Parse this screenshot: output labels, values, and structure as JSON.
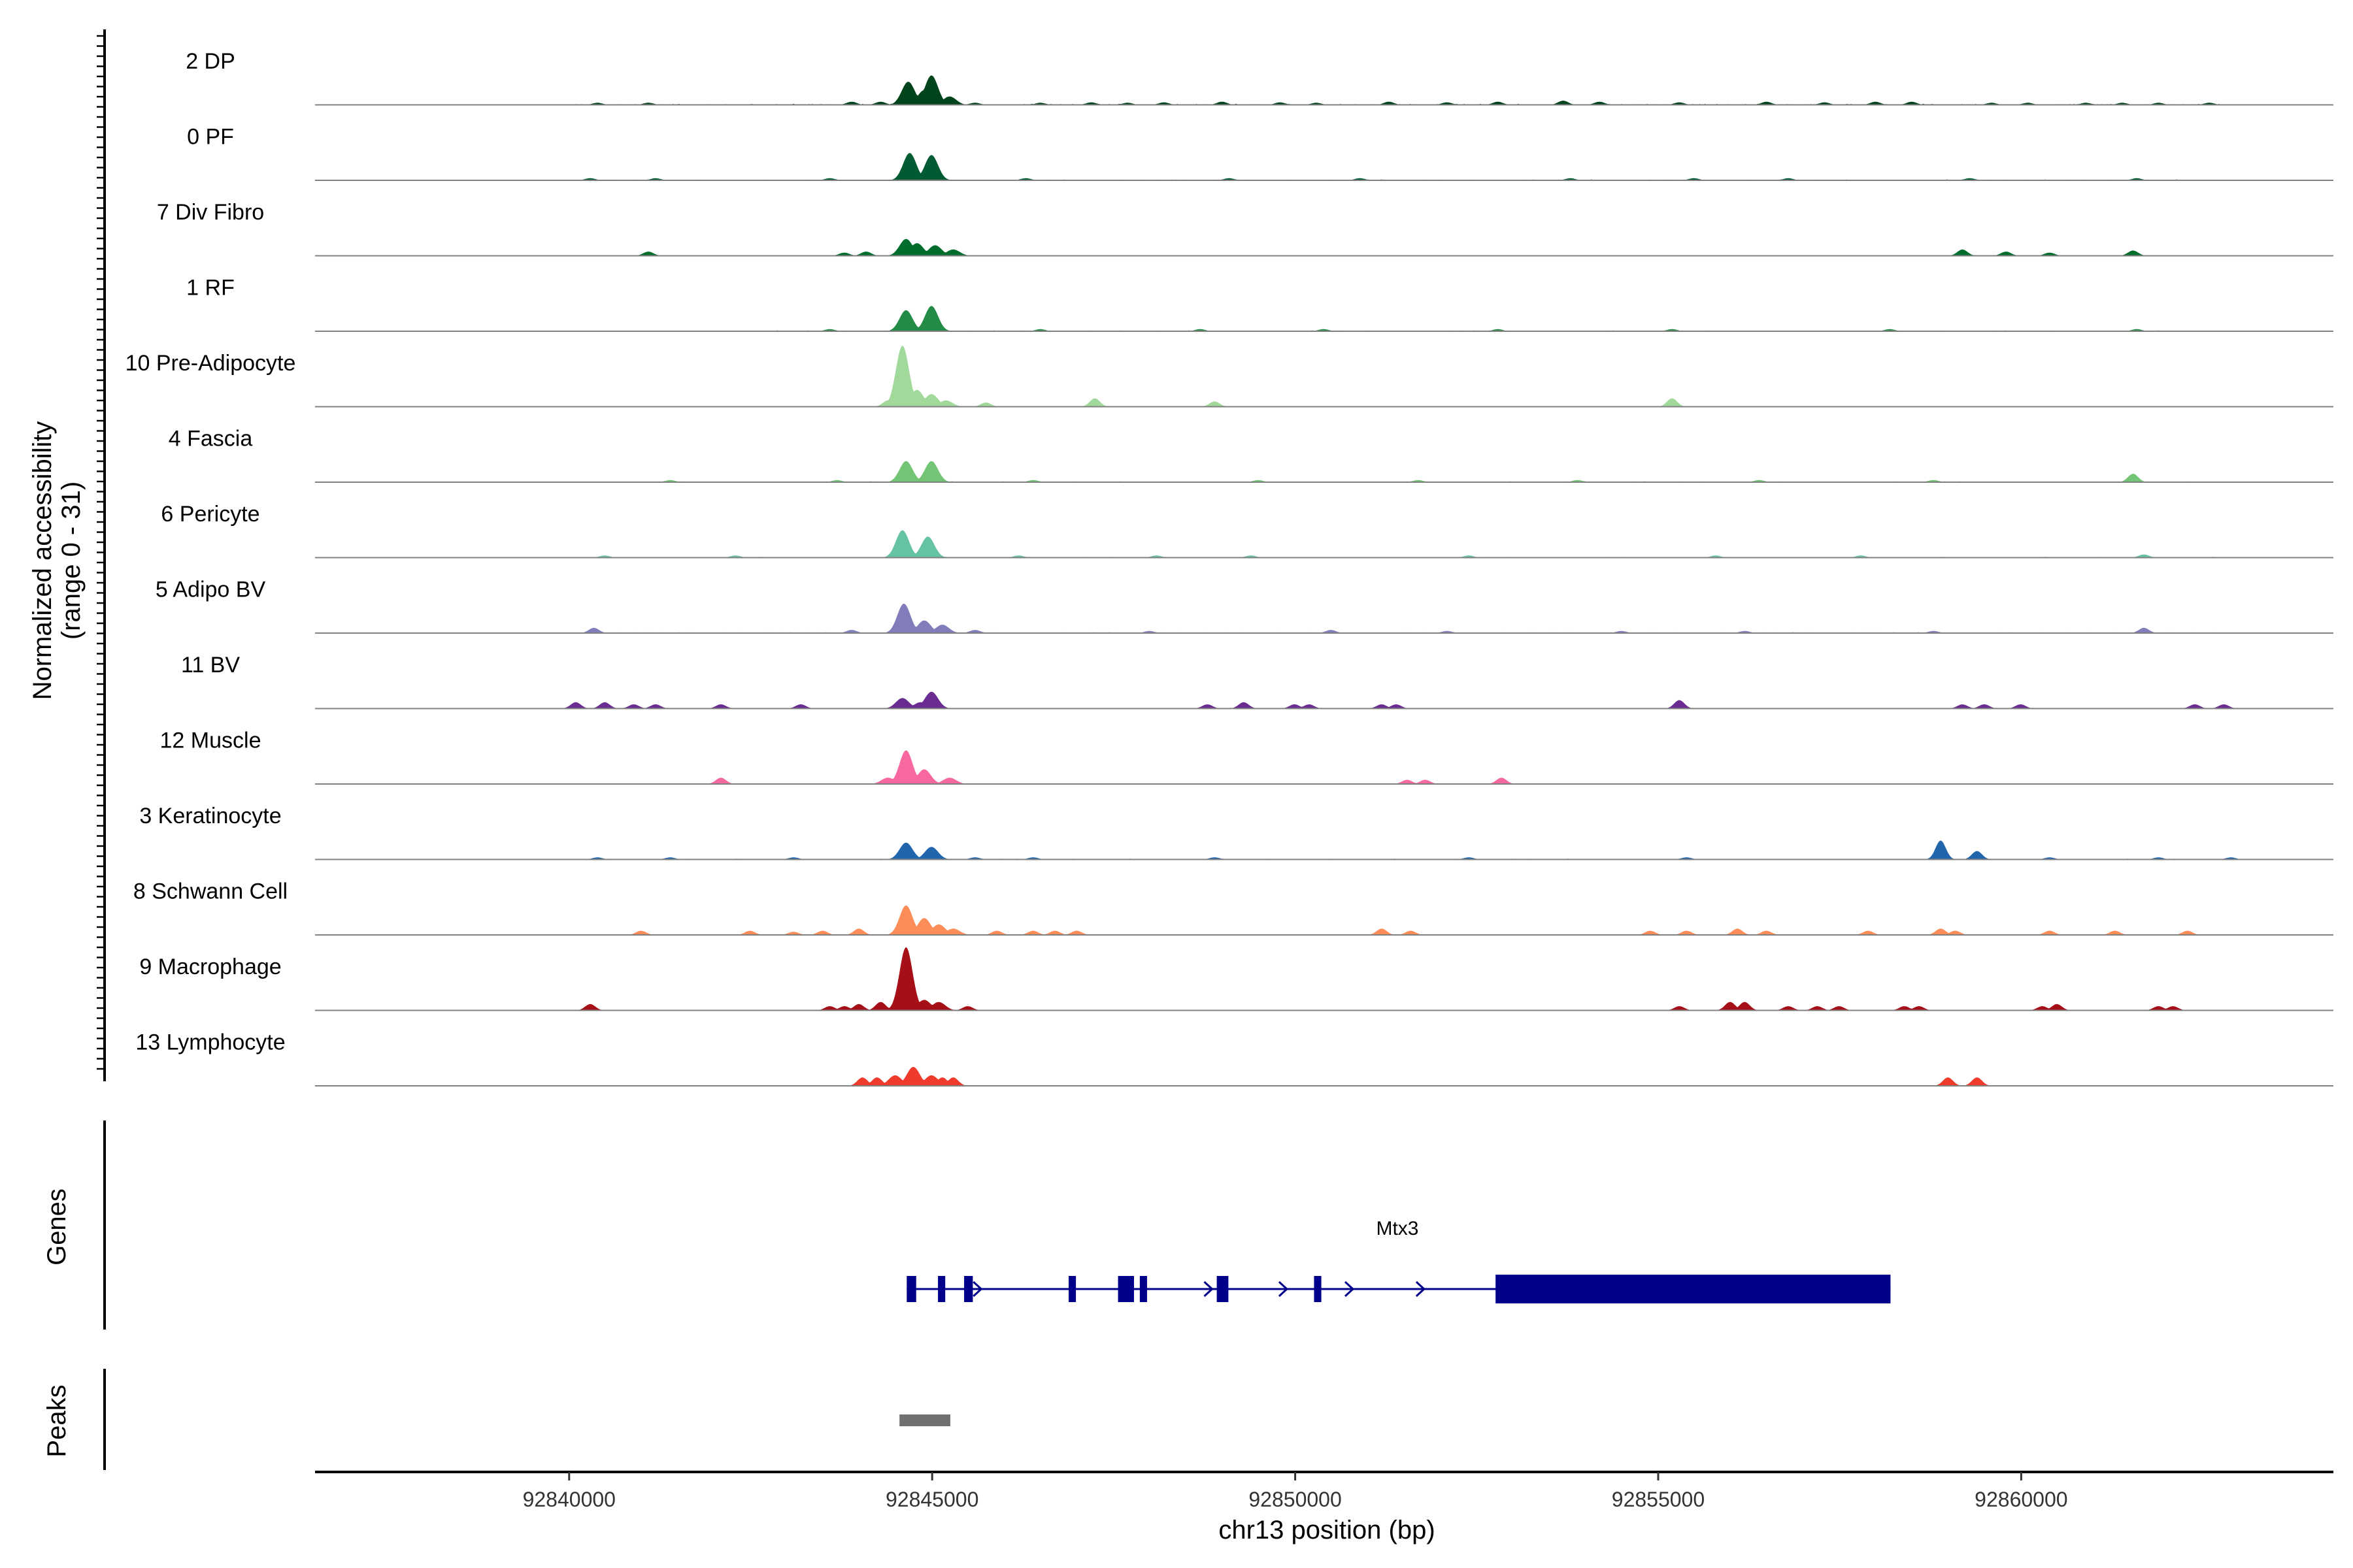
{
  "chart_data": {
    "type": "coverage_tracks",
    "chromosome": "chr13",
    "xlabel": "chr13 position (bp)",
    "xlim": [
      92836500,
      92864300
    ],
    "xticks": [
      92840000,
      92845000,
      92850000,
      92855000,
      92860000
    ],
    "xtick_labels": [
      "92840000",
      "92845000",
      "92850000",
      "92855000",
      "92860000"
    ],
    "coverage_panel": {
      "ylabel_line1": "Normalized accessibility",
      "ylabel_line2": "(range 0 - 31)",
      "ylim": [
        0,
        31
      ]
    },
    "tracks": [
      {
        "label": "2 DP",
        "color": "#00441b",
        "peaks": [
          [
            92844680,
            11
          ],
          [
            92844900,
            7
          ],
          [
            92845000,
            14
          ],
          [
            92845250,
            4
          ]
        ],
        "bumps": [
          [
            92840400,
            1
          ],
          [
            92841100,
            1
          ],
          [
            92843900,
            1.5
          ],
          [
            92844300,
            1.5
          ],
          [
            92845600,
            1
          ],
          [
            92846500,
            1
          ],
          [
            92847200,
            1.2
          ],
          [
            92847700,
            1
          ],
          [
            92848200,
            1.2
          ],
          [
            92849000,
            1.5
          ],
          [
            92849800,
            1.2
          ],
          [
            92850300,
            1
          ],
          [
            92851300,
            1.5
          ],
          [
            92852100,
            1.2
          ],
          [
            92852800,
            1.5
          ],
          [
            92853700,
            2
          ],
          [
            92854200,
            1.5
          ],
          [
            92855300,
            1.2
          ],
          [
            92856500,
            1.5
          ],
          [
            92857300,
            1.2
          ],
          [
            92858000,
            1.5
          ],
          [
            92858500,
            1.5
          ],
          [
            92859600,
            1
          ],
          [
            92860100,
            1
          ],
          [
            92860900,
            1
          ],
          [
            92861400,
            1
          ],
          [
            92861900,
            1
          ],
          [
            92862600,
            1
          ]
        ],
        "noise": [
          [
            92840000,
            92862800,
            0.5
          ]
        ]
      },
      {
        "label": "0 PF",
        "color": "#005a32",
        "peaks": [
          [
            92844700,
            13
          ],
          [
            92845000,
            12
          ]
        ],
        "bumps": [
          [
            92840300,
            1
          ],
          [
            92841200,
            1
          ],
          [
            92843600,
            1
          ],
          [
            92846300,
            1
          ],
          [
            92849100,
            1
          ],
          [
            92850900,
            1
          ],
          [
            92853800,
            1
          ],
          [
            92855500,
            1
          ],
          [
            92856800,
            1
          ],
          [
            92859300,
            1
          ],
          [
            92861600,
            1
          ]
        ],
        "noise": [
          [
            92840000,
            92862700,
            0.4
          ]
        ]
      },
      {
        "label": "7 Div Fibro",
        "color": "#006d2c",
        "peaks": [
          [
            92844650,
            8
          ],
          [
            92844800,
            6
          ],
          [
            92845050,
            5
          ],
          [
            92845300,
            3
          ]
        ],
        "bumps": [
          [
            92841100,
            2
          ],
          [
            92843800,
            1.5
          ],
          [
            92844100,
            2
          ],
          [
            92859200,
            3
          ],
          [
            92859800,
            2
          ],
          [
            92860400,
            1.5
          ],
          [
            92861550,
            2.5
          ]
        ],
        "noise": []
      },
      {
        "label": "1 RF",
        "color": "#238b45",
        "peaks": [
          [
            92844650,
            10
          ],
          [
            92845000,
            12
          ]
        ],
        "bumps": [
          [
            92843600,
            1
          ],
          [
            92846500,
            1
          ],
          [
            92848700,
            1
          ],
          [
            92850400,
            1
          ],
          [
            92852800,
            1
          ],
          [
            92855200,
            1
          ],
          [
            92858200,
            1
          ],
          [
            92861600,
            1
          ]
        ],
        "noise": [
          [
            92840500,
            92862700,
            0.4
          ]
        ]
      },
      {
        "label": "10 Pre-Adipocyte",
        "color": "#a1d99b",
        "peaks": [
          [
            92844600,
            29
          ],
          [
            92844800,
            8
          ],
          [
            92845000,
            6
          ],
          [
            92845200,
            3
          ]
        ],
        "bumps": [
          [
            92844400,
            3
          ],
          [
            92845750,
            2
          ],
          [
            92847250,
            4
          ],
          [
            92848900,
            2.5
          ],
          [
            92855200,
            4
          ]
        ],
        "noise": []
      },
      {
        "label": "4 Fascia",
        "color": "#74c476",
        "peaks": [
          [
            92844650,
            10
          ],
          [
            92845000,
            10
          ]
        ],
        "bumps": [
          [
            92841400,
            1
          ],
          [
            92843700,
            1
          ],
          [
            92846400,
            1
          ],
          [
            92849500,
            1
          ],
          [
            92851700,
            1
          ],
          [
            92853900,
            1
          ],
          [
            92856400,
            1
          ],
          [
            92858800,
            1
          ],
          [
            92861550,
            4
          ]
        ],
        "noise": [
          [
            92840400,
            92862700,
            0.4
          ]
        ]
      },
      {
        "label": "6 Pericyte",
        "color": "#66c2a4",
        "peaks": [
          [
            92844600,
            13
          ],
          [
            92844950,
            10
          ]
        ],
        "bumps": [
          [
            92840500,
            1
          ],
          [
            92842300,
            1
          ],
          [
            92846200,
            1
          ],
          [
            92848100,
            1
          ],
          [
            92849400,
            1
          ],
          [
            92852400,
            1
          ],
          [
            92855800,
            1
          ],
          [
            92857800,
            1
          ],
          [
            92861700,
            1.5
          ]
        ],
        "noise": [
          [
            92840500,
            92862900,
            0.4
          ]
        ]
      },
      {
        "label": "5 Adipo BV",
        "color": "#807dba",
        "peaks": [
          [
            92844620,
            14
          ],
          [
            92844900,
            6
          ],
          [
            92845150,
            4
          ]
        ],
        "bumps": [
          [
            92840350,
            2.5
          ],
          [
            92843900,
            1.5
          ],
          [
            92845600,
            1.5
          ],
          [
            92848000,
            1
          ],
          [
            92850500,
            1.5
          ],
          [
            92852100,
            1
          ],
          [
            92854500,
            1
          ],
          [
            92856200,
            1
          ],
          [
            92858800,
            1
          ],
          [
            92861700,
            2.5
          ]
        ],
        "noise": [
          [
            92840200,
            92862700,
            0.4
          ]
        ]
      },
      {
        "label": "11 BV",
        "color": "#6a2c91",
        "peaks": [
          [
            92844600,
            5
          ],
          [
            92844850,
            3
          ],
          [
            92845000,
            8
          ]
        ],
        "bumps": [
          [
            92840100,
            3
          ],
          [
            92840500,
            3
          ],
          [
            92840900,
            2
          ],
          [
            92841200,
            2
          ],
          [
            92842100,
            2
          ],
          [
            92843200,
            2
          ],
          [
            92848800,
            2
          ],
          [
            92849300,
            3
          ],
          [
            92850000,
            2
          ],
          [
            92850200,
            2
          ],
          [
            92851200,
            2
          ],
          [
            92851400,
            2
          ],
          [
            92855300,
            4
          ],
          [
            92859200,
            2
          ],
          [
            92859500,
            2
          ],
          [
            92860000,
            2
          ],
          [
            92862400,
            2
          ],
          [
            92862800,
            2
          ]
        ],
        "noise": []
      },
      {
        "label": "12 Muscle",
        "color": "#f768a1",
        "peaks": [
          [
            92844400,
            3
          ],
          [
            92844650,
            16
          ],
          [
            92844900,
            7
          ],
          [
            92845250,
            3
          ]
        ],
        "bumps": [
          [
            92842100,
            3
          ],
          [
            92851550,
            2
          ],
          [
            92851800,
            2
          ],
          [
            92852850,
            3
          ]
        ],
        "noise": []
      },
      {
        "label": "3 Keratinocyte",
        "color": "#2166ac",
        "peaks": [
          [
            92844650,
            8
          ],
          [
            92845000,
            6
          ]
        ],
        "bumps": [
          [
            92840400,
            1
          ],
          [
            92841400,
            1
          ],
          [
            92843100,
            1
          ],
          [
            92845600,
            1
          ],
          [
            92846400,
            1
          ],
          [
            92848900,
            1
          ],
          [
            92852400,
            1
          ],
          [
            92855400,
            1
          ],
          [
            92858900,
            9
          ],
          [
            92859400,
            4
          ],
          [
            92860400,
            1
          ],
          [
            92861900,
            1
          ],
          [
            92862900,
            1
          ]
        ],
        "noise": [
          [
            92840000,
            92863000,
            0.4
          ]
        ]
      },
      {
        "label": "8 Schwann Cell",
        "color": "#fc8d59",
        "peaks": [
          [
            92844650,
            14
          ],
          [
            92844900,
            8
          ],
          [
            92845100,
            5
          ],
          [
            92845300,
            3
          ]
        ],
        "bumps": [
          [
            92841000,
            2
          ],
          [
            92842500,
            2
          ],
          [
            92843100,
            1.5
          ],
          [
            92843500,
            2
          ],
          [
            92844000,
            3
          ],
          [
            92845900,
            2
          ],
          [
            92846400,
            2
          ],
          [
            92846700,
            2
          ],
          [
            92847000,
            2
          ],
          [
            92851200,
            3
          ],
          [
            92851600,
            2
          ],
          [
            92854900,
            2
          ],
          [
            92855400,
            2
          ],
          [
            92856100,
            3
          ],
          [
            92856500,
            2
          ],
          [
            92857900,
            2
          ],
          [
            92858900,
            3
          ],
          [
            92859100,
            2
          ],
          [
            92860400,
            2
          ],
          [
            92861300,
            2
          ],
          [
            92862300,
            2
          ]
        ],
        "noise": []
      },
      {
        "label": "9 Macrophage",
        "color": "#a50f15",
        "peaks": [
          [
            92844650,
            30
          ],
          [
            92844900,
            5
          ],
          [
            92845100,
            4
          ]
        ],
        "bumps": [
          [
            92840300,
            3
          ],
          [
            92843600,
            2
          ],
          [
            92843800,
            2
          ],
          [
            92844000,
            3
          ],
          [
            92844300,
            4
          ],
          [
            92845500,
            2
          ],
          [
            92855300,
            2
          ],
          [
            92856000,
            4
          ],
          [
            92856200,
            4
          ],
          [
            92856800,
            2
          ],
          [
            92857200,
            2
          ],
          [
            92857500,
            2
          ],
          [
            92858400,
            2
          ],
          [
            92858600,
            2
          ],
          [
            92860300,
            2
          ],
          [
            92860500,
            3
          ],
          [
            92861900,
            2
          ],
          [
            92862100,
            2
          ]
        ],
        "noise": []
      },
      {
        "label": "13 Lymphocyte",
        "color": "#ef3b2c",
        "peaks": [
          [
            92844500,
            5
          ],
          [
            92844750,
            9
          ],
          [
            92845000,
            5
          ]
        ],
        "bumps": [
          [
            92844050,
            4
          ],
          [
            92844250,
            4
          ],
          [
            92845150,
            4
          ],
          [
            92845300,
            4
          ],
          [
            92859000,
            4
          ],
          [
            92859400,
            4
          ]
        ],
        "noise": []
      }
    ],
    "genes_panel": {
      "ylabel": "Genes"
    },
    "gene": {
      "name": "Mtx3",
      "color": "#00008b",
      "strand": "+",
      "start": 92844650,
      "end": 92858200,
      "exons": [
        [
          92844650,
          92844780
        ],
        [
          92845080,
          92845180
        ],
        [
          92845440,
          92845560
        ],
        [
          92846880,
          92846980
        ],
        [
          92847560,
          92847780
        ],
        [
          92847860,
          92847960
        ],
        [
          92848920,
          92849080
        ],
        [
          92850260,
          92850360
        ],
        [
          92852760,
          92858200
        ]
      ],
      "arrows": [
        92845640,
        92848820,
        92849850,
        92850760,
        92851740
      ]
    },
    "peaks_panel": {
      "ylabel": "Peaks"
    },
    "peaks": [
      [
        92844550,
        92845250
      ]
    ],
    "peak_color": "#707070"
  }
}
